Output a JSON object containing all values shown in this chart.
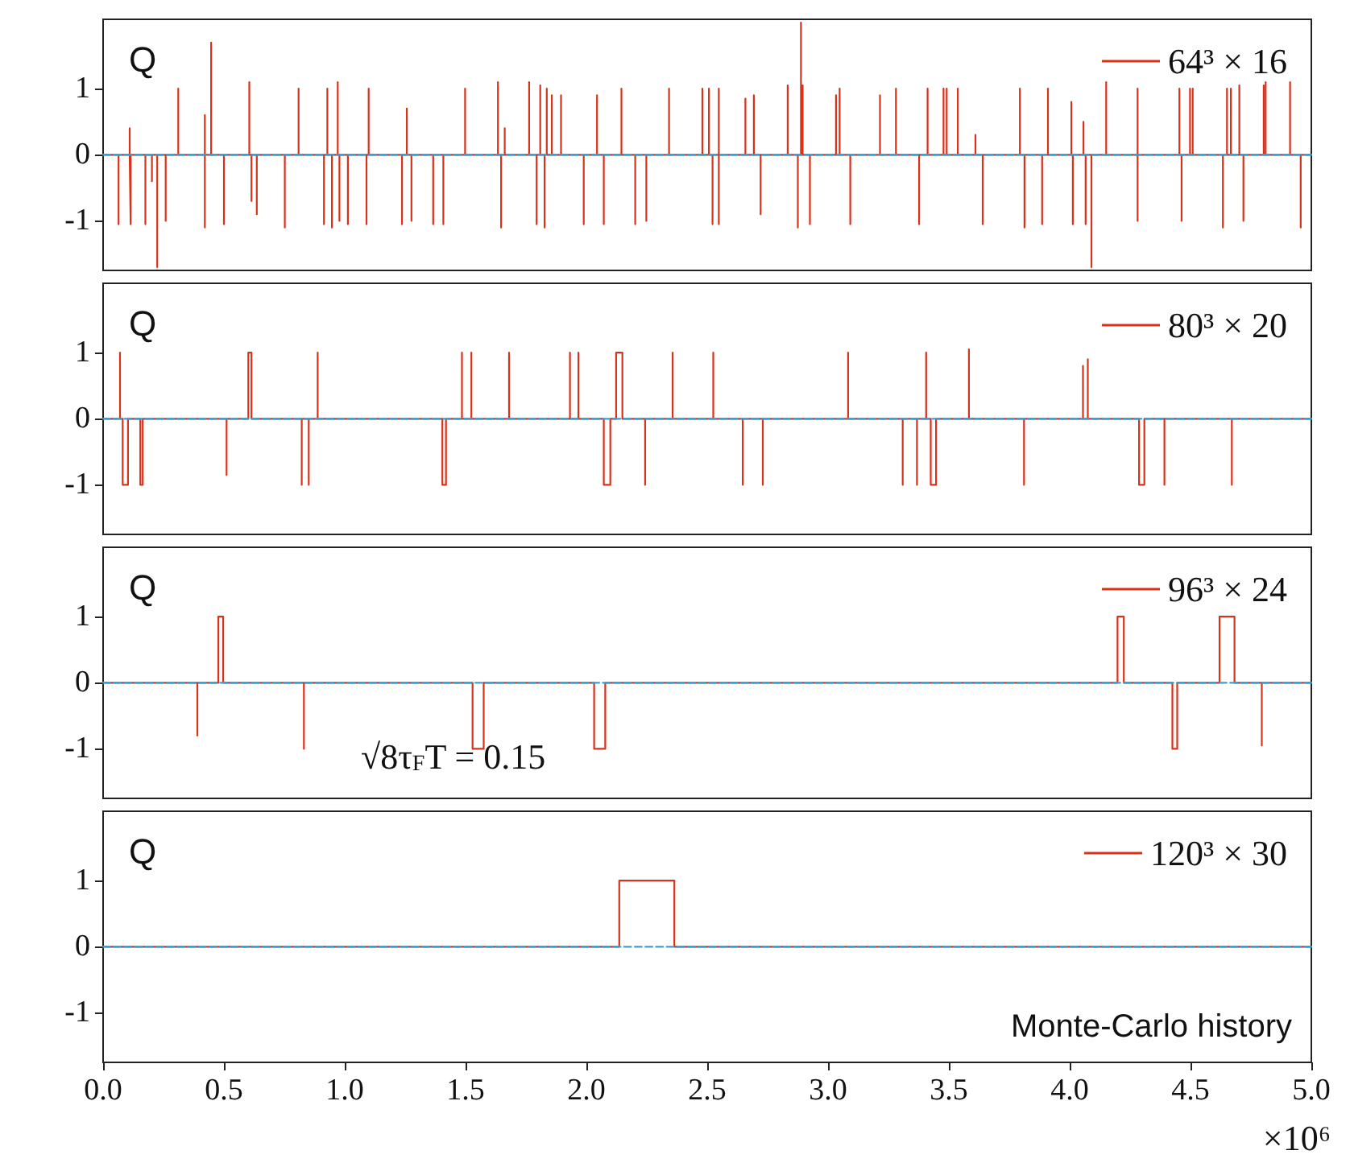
{
  "chart_data": [
    {
      "type": "line",
      "ylabel": "Q",
      "xlim": [
        0,
        5
      ],
      "ylim": [
        -1.75,
        2.05
      ],
      "yticks": [
        -1,
        0,
        1
      ],
      "tick_labels": "y",
      "legend": "top right",
      "series": [
        {
          "name": "64³ × 16",
          "color": "#d9321b",
          "x": [
            0,
            0.064,
            0.064,
            0.064,
            0.11,
            0.11,
            0.11,
            0.114,
            0.114,
            0.114,
            0.175,
            0.175,
            0.175,
            0.202,
            0.202,
            0.202,
            0.224,
            0.224,
            0.224,
            0.259,
            0.259,
            0.259,
            0.311,
            0.311,
            0.311,
            0.421,
            0.421,
            0.421,
            0.421,
            0.447,
            0.447,
            0.447,
            0.5,
            0.5,
            0.5,
            0.605,
            0.605,
            0.605,
            0.614,
            0.614,
            0.614,
            0.636,
            0.636,
            0.636,
            0.752,
            0.752,
            0.752,
            0.809,
            0.809,
            0.809,
            0.914,
            0.914,
            0.914,
            0.928,
            0.928,
            0.928,
            0.947,
            0.947,
            0.947,
            0.971,
            0.971,
            0.971,
            0.978,
            0.978,
            0.978,
            1.013,
            1.013,
            1.013,
            1.09,
            1.09,
            1.09,
            1.099,
            1.099,
            1.099,
            1.237,
            1.237,
            1.237,
            1.257,
            1.257,
            1.257,
            1.276,
            1.276,
            1.276,
            1.366,
            1.366,
            1.366,
            1.408,
            1.408,
            1.408,
            1.498,
            1.498,
            1.498,
            1.634,
            1.634,
            1.634,
            1.647,
            1.647,
            1.647,
            1.662,
            1.662,
            1.662,
            1.763,
            1.763,
            1.763,
            1.794,
            1.794,
            1.794,
            1.809,
            1.809,
            1.809,
            1.827,
            1.827,
            1.827,
            1.836,
            1.836,
            1.836,
            1.857,
            1.857,
            1.857,
            1.895,
            1.895,
            1.895,
            1.989,
            1.989,
            1.989,
            2.044,
            2.044,
            2.044,
            2.072,
            2.072,
            2.072,
            2.145,
            2.145,
            2.145,
            2.202,
            2.202,
            2.202,
            2.248,
            2.248,
            2.248,
            2.342,
            2.342,
            2.342,
            2.48,
            2.48,
            2.48,
            2.507,
            2.507,
            2.507,
            2.522,
            2.522,
            2.522,
            2.548,
            2.548,
            2.548,
            2.548,
            2.658,
            2.658,
            2.658,
            2.693,
            2.693,
            2.693,
            2.721,
            2.721,
            2.721,
            2.833,
            2.833,
            2.833,
            2.875,
            2.875,
            2.875,
            2.888,
            2.888,
            2.888,
            2.895,
            2.895,
            2.895,
            2.925,
            2.925,
            2.925,
            3.033,
            3.033,
            3.033,
            3.048,
            3.048,
            3.048,
            3.092,
            3.092,
            3.092,
            3.215,
            3.215,
            3.215,
            3.281,
            3.281,
            3.281,
            3.377,
            3.377,
            3.377,
            3.412,
            3.412,
            3.412,
            3.478,
            3.478,
            3.478,
            3.491,
            3.491,
            3.491,
            3.537,
            3.537,
            3.537,
            3.61,
            3.61,
            3.61,
            3.64,
            3.64,
            3.64,
            3.794,
            3.794,
            3.794,
            3.813,
            3.813,
            3.813,
            3.886,
            3.886,
            3.886,
            3.91,
            3.91,
            3.91,
            4.007,
            4.007,
            4.007,
            4.013,
            4.013,
            4.013,
            4.057,
            4.057,
            4.057,
            4.066,
            4.066,
            4.066,
            4.09,
            4.09,
            4.09,
            4.151,
            4.151,
            4.151,
            4.281,
            4.281,
            4.281,
            4.281,
            4.454,
            4.454,
            4.454,
            4.463,
            4.463,
            4.463,
            4.498,
            4.498,
            4.498,
            4.509,
            4.509,
            4.509,
            4.634,
            4.634,
            4.634,
            4.651,
            4.651,
            4.651,
            4.667,
            4.667,
            4.667,
            4.702,
            4.702,
            4.702,
            4.719,
            4.719,
            4.719,
            4.803,
            4.803,
            4.803,
            4.811,
            4.811,
            4.811,
            4.912,
            4.912,
            4.912,
            4.956,
            4.956,
            4.956,
            5
          ],
          "values": [
            0,
            0,
            -1.05,
            0,
            0,
            0.4,
            0,
            0,
            -1.05,
            0,
            0,
            -1.05,
            0,
            0,
            -0.4,
            0,
            0,
            -1.7,
            0,
            0,
            -1,
            0,
            0,
            1,
            0,
            0,
            0.6,
            -1.1,
            0,
            0,
            1.7,
            0,
            0,
            -1.05,
            0,
            0,
            1.1,
            0,
            0,
            -0.7,
            0,
            0,
            -0.9,
            0,
            0,
            -1.1,
            0,
            0,
            1,
            0,
            0,
            -1.05,
            0,
            0,
            1,
            0,
            0,
            -1.1,
            0,
            0,
            1.1,
            0,
            0,
            -1,
            0,
            0,
            -1.05,
            0,
            0,
            -1.05,
            0,
            0,
            1,
            0,
            0,
            -1.05,
            0,
            0,
            0.7,
            0,
            0,
            -1,
            0,
            0,
            -1.05,
            0,
            0,
            -1.05,
            0,
            0,
            1,
            0,
            0,
            1.1,
            0,
            0,
            -1.1,
            0,
            0,
            0.4,
            0,
            0,
            1.1,
            0,
            0,
            -1.05,
            0,
            0,
            1.05,
            0,
            0,
            -1.1,
            0,
            0,
            1,
            0,
            0,
            0.9,
            0,
            0,
            0.9,
            0,
            0,
            -1.05,
            0,
            0,
            0.9,
            0,
            0,
            -1.05,
            0,
            0,
            1,
            0,
            0,
            -1.05,
            0,
            0,
            -1,
            0,
            0,
            1,
            0,
            0,
            1,
            0,
            0,
            1,
            0,
            0,
            -1.05,
            0,
            0,
            1,
            -1.05,
            0,
            0,
            0.85,
            0,
            0,
            0.9,
            0,
            0,
            -0.9,
            0,
            0,
            1.05,
            0,
            0,
            -1.1,
            0,
            0,
            2,
            0,
            0,
            1.05,
            0,
            0,
            -1.05,
            0,
            0,
            0.9,
            0,
            0,
            1,
            0,
            0,
            -1.05,
            0,
            0,
            0.9,
            0,
            0,
            1,
            0,
            0,
            -1.05,
            0,
            0,
            1,
            0,
            0,
            1,
            0,
            0,
            1,
            0,
            0,
            1,
            0,
            0,
            0.3,
            0,
            0,
            -1.05,
            0,
            0,
            1,
            0,
            0,
            -1.1,
            0,
            0,
            -1.05,
            0,
            0,
            1,
            0,
            0,
            0.8,
            0,
            0,
            -1.05,
            0,
            0,
            0.5,
            0,
            0,
            -1.05,
            0,
            0,
            -1.7,
            0,
            0,
            1.1,
            0,
            0,
            1,
            -1,
            0,
            0,
            1,
            0,
            0,
            -1,
            0,
            0,
            1,
            0,
            0,
            1,
            0,
            0,
            -1.1,
            0,
            0,
            1,
            0,
            0,
            1,
            0,
            0,
            1.05,
            0,
            0,
            -1,
            0,
            0,
            1.05,
            0,
            0,
            1.1,
            0,
            0,
            1.1,
            0,
            0,
            -1.1,
            0,
            0
          ]
        },
        {
          "color": "#3a9fd9",
          "line_style": "dashed",
          "x": [
            0,
            5
          ],
          "values": [
            0,
            0
          ]
        }
      ]
    },
    {
      "type": "line",
      "ylabel": "Q",
      "xlim": [
        0,
        5
      ],
      "ylim": [
        -1.75,
        2.05
      ],
      "yticks": [
        -1,
        0,
        1
      ],
      "tick_labels": "y",
      "legend": "top right",
      "series": [
        {
          "name": "80³ × 20",
          "color": "#d9321b",
          "x": [
            0,
            0.07,
            0.07,
            0.07,
            0.081,
            0.081,
            0.103,
            0.103,
            0.154,
            0.154,
            0.164,
            0.164,
            0.511,
            0.511,
            0.511,
            0.601,
            0.601,
            0.614,
            0.614,
            0.822,
            0.822,
            0.822,
            0.851,
            0.851,
            0.851,
            0.888,
            0.888,
            0.888,
            1.404,
            1.404,
            1.419,
            1.419,
            1.485,
            1.485,
            1.485,
            1.524,
            1.524,
            1.524,
            1.68,
            1.68,
            1.68,
            1.932,
            1.932,
            1.932,
            1.967,
            1.967,
            1.967,
            2.072,
            2.072,
            2.099,
            2.099,
            2.123,
            2.123,
            2.149,
            2.149,
            2.243,
            2.243,
            2.243,
            2.357,
            2.357,
            2.357,
            2.525,
            2.525,
            2.525,
            2.647,
            2.647,
            2.647,
            2.73,
            2.73,
            2.73,
            3.083,
            3.083,
            3.083,
            3.309,
            3.309,
            3.309,
            3.368,
            3.368,
            3.368,
            3.406,
            3.406,
            3.406,
            3.425,
            3.425,
            3.447,
            3.447,
            3.583,
            3.583,
            3.583,
            3.811,
            3.811,
            3.811,
            4.055,
            4.055,
            4.055,
            4.075,
            4.075,
            4.075,
            4.287,
            4.287,
            4.309,
            4.309,
            4.392,
            4.392,
            4.392,
            4.671,
            4.671,
            4.671,
            5
          ],
          "values": [
            0,
            0,
            1,
            0,
            0,
            -1,
            -1,
            0,
            0,
            -1,
            -1,
            0,
            0,
            -0.85,
            0,
            0,
            1,
            1,
            0,
            0,
            -1,
            0,
            0,
            -1,
            0,
            0,
            1,
            0,
            0,
            -1,
            -1,
            0,
            0,
            1,
            0,
            0,
            1,
            0,
            0,
            1,
            0,
            0,
            1,
            0,
            0,
            1,
            0,
            0,
            -1,
            -1,
            0,
            0,
            1,
            1,
            0,
            0,
            -1,
            0,
            0,
            1,
            0,
            0,
            1,
            0,
            0,
            -1,
            0,
            0,
            -1,
            0,
            0,
            1,
            0,
            0,
            -1,
            0,
            0,
            -1,
            0,
            0,
            1,
            0,
            0,
            -1,
            -1,
            0,
            0,
            1.05,
            0,
            0,
            -1,
            0,
            0,
            0.8,
            0,
            0,
            0.9,
            0,
            0,
            -1,
            -1,
            0,
            0,
            -1,
            0,
            0,
            -1,
            0,
            0
          ]
        },
        {
          "color": "#3a9fd9",
          "line_style": "dashed",
          "x": [
            0,
            5
          ],
          "values": [
            0,
            0
          ]
        }
      ]
    },
    {
      "type": "line",
      "ylabel": "Q",
      "xlim": [
        0,
        5
      ],
      "ylim": [
        -1.75,
        2.05
      ],
      "yticks": [
        -1,
        0,
        1
      ],
      "tick_labels": "y",
      "legend": "top right",
      "annotations": [
        "√8τ$_{F}$T = 0.15"
      ],
      "series": [
        {
          "name": "96³ × 24",
          "color": "#d9321b",
          "x": [
            0,
            0.39,
            0.39,
            0.39,
            0.477,
            0.477,
            0.497,
            0.497,
            0.831,
            0.831,
            0.831,
            1.529,
            1.529,
            1.575,
            1.575,
            2.032,
            2.032,
            2.078,
            2.078,
            4.198,
            4.198,
            4.224,
            4.224,
            4.425,
            4.425,
            4.445,
            4.445,
            4.62,
            4.62,
            4.682,
            4.682,
            4.795,
            4.795,
            4.795,
            5
          ],
          "values": [
            0,
            0,
            -0.8,
            0,
            0,
            1,
            1,
            0,
            0,
            -1,
            0,
            0,
            -1,
            -1,
            0,
            0,
            -1,
            -1,
            0,
            0,
            1,
            1,
            0,
            0,
            -1,
            -1,
            0,
            0,
            1,
            1,
            0,
            0,
            -0.95,
            0,
            0
          ]
        },
        {
          "color": "#3a9fd9",
          "line_style": "dashed",
          "x": [
            0,
            5
          ],
          "values": [
            0,
            0
          ]
        }
      ]
    },
    {
      "type": "line",
      "ylabel": "Q",
      "xlabel": "Monte-Carlo history",
      "xlim": [
        0,
        5
      ],
      "ylim": [
        -1.75,
        2.05
      ],
      "yticks": [
        -1,
        0,
        1
      ],
      "legend": "top right",
      "annotations": [
        "×10⁶"
      ],
      "xticks": [
        {
          "value": 0,
          "label": "0.0"
        },
        0.5,
        {
          "value": 1,
          "label": "1.0"
        },
        1.5,
        {
          "value": 2,
          "label": "2.0"
        },
        2.5,
        {
          "value": 3,
          "label": "3.0"
        },
        3.5,
        {
          "value": 4,
          "label": "4.0"
        },
        4.5,
        {
          "value": 5,
          "label": "5.0"
        }
      ],
      "series": [
        {
          "name": "120³ × 30",
          "color": "#d9321b",
          "x": [
            0,
            2.136,
            2.136,
            2.364,
            2.364,
            5
          ],
          "values": [
            0,
            0,
            1,
            1,
            0,
            0
          ]
        },
        {
          "color": "#3a9fd9",
          "line_style": "dashed",
          "x": [
            0,
            5
          ],
          "values": [
            0,
            0
          ]
        }
      ]
    }
  ]
}
